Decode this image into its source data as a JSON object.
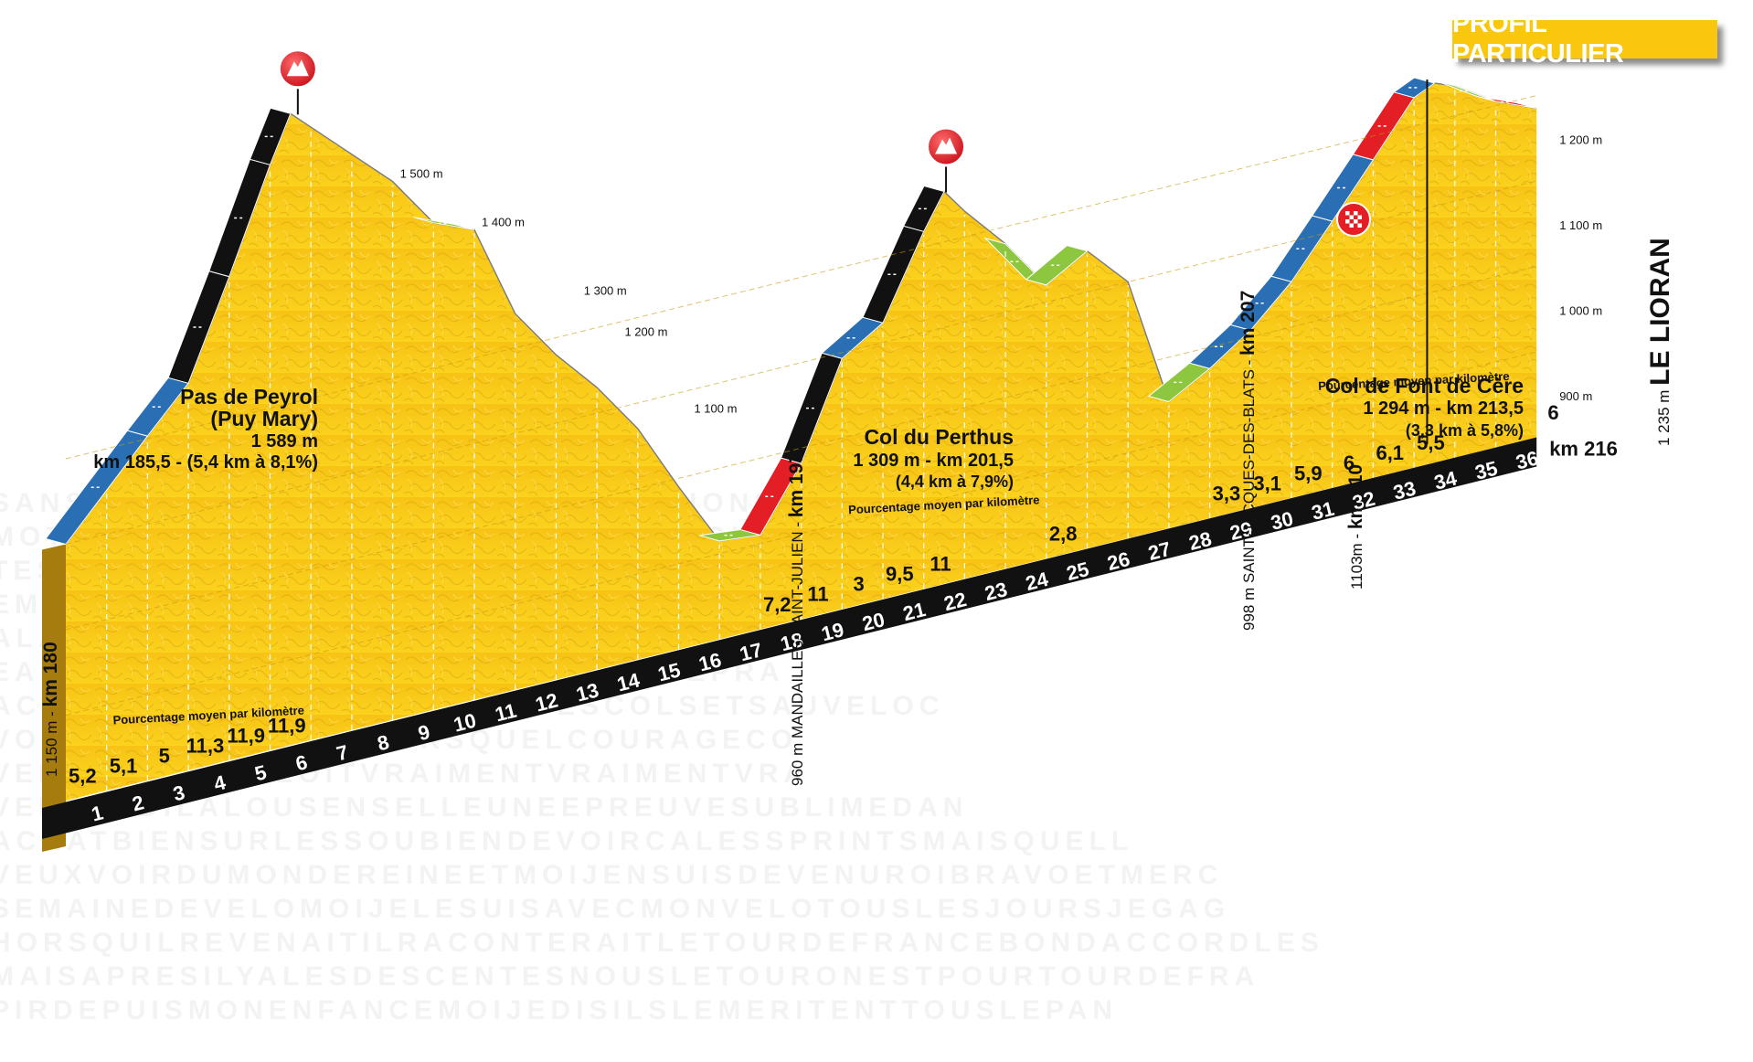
{
  "badge": {
    "label": "PROFIL PARTICULIER",
    "bg": "#F9C80E"
  },
  "background_text": [
    "SANSFRANCETOURDEFRANCEMOTIVATIONSOUVENIRS",
    "MOTIONCOURAGEMYTHEGEANTSDELAROUTE",
    "TESEXPLOITSTOUSLESJOURSMONTAGNE",
    "EMENTREVENTTOUSENSEMBLEAUTOUR",
    "ALAVIEREVIENTAUCOEURDELAFRANCE",
    "EAUPELOTONLESCOUREURSPASSIONJEPRA",
    "ACVENTSOLEILMONTEESVIRAGESCOLSETSAUVELOC",
    "VOSRECITSLESCOUREURSQUELCOURAGECO",
    "VEMOIQUELEXPLOITVRAIMENTVRAIMENTVRA",
    "VENDREDILALOUSENSELLEUNEEPREUVESUBLIMEDAN",
    "ACHATBIENSURLESSOUBIENDEVOIRCALESSPRINTSMAISQUELL",
    "VEUXVOIRDUMONDEREINEETMOIJENSUISDEVENUROIBRAVOETMERC",
    "SEMAINEDEVELOMOIJELESUISAVECMONVELOTOUSLESJOURSJEGAG",
    "HORSQUILREVENAITILRACONTERAITLETOURDEFRANCEBONDACCORDLES",
    "MAISAPRESILYALESDESCENTESNOUSLETOURONESTPOURTOURDEFRA",
    "PIRDEPUISMONENFANCEMOIJEDISILSLEMERITENTTOUSLEPAN"
  ],
  "chart_data": {
    "type": "area",
    "title": "",
    "xlabel": "",
    "ylabel": "",
    "x_unit": "km",
    "y_unit": "m",
    "race_km_start": 180,
    "race_km_end": 216,
    "x_range": [
      0,
      36
    ],
    "y_ticks": [
      "900 m",
      "1 000 m",
      "1 100 m",
      "1 200 m"
    ],
    "km_markers": [
      "1",
      "2",
      "3",
      "4",
      "5",
      "6",
      "7",
      "8",
      "9",
      "10",
      "11",
      "12",
      "13",
      "14",
      "15",
      "16",
      "17",
      "18",
      "19",
      "20",
      "21",
      "22",
      "23",
      "24",
      "25",
      "26",
      "27",
      "28",
      "29",
      "30",
      "31",
      "32",
      "33",
      "34",
      "35",
      "36"
    ],
    "end_label": "km 216",
    "profile": [
      {
        "km": 0,
        "alt": 1150
      },
      {
        "km": 1,
        "alt": 1202
      },
      {
        "km": 2,
        "alt": 1253
      },
      {
        "km": 3,
        "alt": 1303
      },
      {
        "km": 4,
        "alt": 1416
      },
      {
        "km": 5,
        "alt": 1535
      },
      {
        "km": 5.5,
        "alt": 1589
      },
      {
        "km": 8,
        "alt": 1480
      },
      {
        "km": 9,
        "alt": 1420
      },
      {
        "km": 10,
        "alt": 1400
      },
      {
        "km": 11,
        "alt": 1290
      },
      {
        "km": 12,
        "alt": 1230
      },
      {
        "km": 13,
        "alt": 1180
      },
      {
        "km": 14,
        "alt": 1120
      },
      {
        "km": 15,
        "alt": 1040
      },
      {
        "km": 16,
        "alt": 965
      },
      {
        "km": 17,
        "alt": 960
      },
      {
        "km": 18,
        "alt": 1032
      },
      {
        "km": 19,
        "alt": 1143
      },
      {
        "km": 20,
        "alt": 1173
      },
      {
        "km": 21,
        "alt": 1268
      },
      {
        "km": 21.5,
        "alt": 1309
      },
      {
        "km": 22,
        "alt": 1280
      },
      {
        "km": 23,
        "alt": 1230
      },
      {
        "km": 24,
        "alt": 1170
      },
      {
        "km": 25,
        "alt": 1198
      },
      {
        "km": 26,
        "alt": 1150
      },
      {
        "km": 27,
        "alt": 998
      },
      {
        "km": 28,
        "alt": 1025
      },
      {
        "km": 29,
        "alt": 1058
      },
      {
        "km": 30,
        "alt": 1103
      },
      {
        "km": 31,
        "alt": 1162
      },
      {
        "km": 32,
        "alt": 1222
      },
      {
        "km": 33,
        "alt": 1283
      },
      {
        "km": 33.5,
        "alt": 1294
      },
      {
        "km": 34,
        "alt": 1285
      },
      {
        "km": 35,
        "alt": 1255
      },
      {
        "km": 36,
        "alt": 1235
      }
    ],
    "grades": [
      {
        "km": 1,
        "pct": "5,2"
      },
      {
        "km": 2,
        "pct": "5,1"
      },
      {
        "km": 3,
        "pct": "5"
      },
      {
        "km": 4,
        "pct": "11,3"
      },
      {
        "km": 5,
        "pct": "11,9"
      },
      {
        "km": 6,
        "pct": "11,9"
      },
      {
        "km": 18,
        "pct": "7,2"
      },
      {
        "km": 19,
        "pct": "11"
      },
      {
        "km": 20,
        "pct": "3"
      },
      {
        "km": 21,
        "pct": "9,5"
      },
      {
        "km": 22,
        "pct": "11"
      },
      {
        "km": 25,
        "pct": "2,8"
      },
      {
        "km": 29,
        "pct": "3,3"
      },
      {
        "km": 30,
        "pct": "3,1"
      },
      {
        "km": 31,
        "pct": "5,9"
      },
      {
        "km": 32,
        "pct": "6"
      },
      {
        "km": 33,
        "pct": "6,1"
      },
      {
        "km": 34,
        "pct": "5,5"
      },
      {
        "km": 37,
        "pct": "6"
      }
    ],
    "grade_caption": "Pourcentage moyen par kilomètre",
    "segment_colors": {
      "green": "#8DC63F",
      "blue": "#2A6EB4",
      "red": "#E31E24",
      "black": "#111111"
    },
    "climbs": [
      {
        "name": "Pas de Peyrol",
        "sub": "(Puy Mary)",
        "alt": "1 589 m",
        "detail": "km 185,5 - (5,4 km à 8,1%)"
      },
      {
        "name": "Col du Perthus",
        "alt_km": "1 309 m - km 201,5",
        "detail": "(4,4 km à 7,9%)"
      },
      {
        "name": "Col de Font de Cère",
        "alt_km": "1 294 m - km 213,5",
        "detail": "(3,3 km à 5,8%)"
      }
    ],
    "places": [
      {
        "alt": "1 150 m",
        "km": "km 180"
      },
      {
        "alt": "960 m",
        "name": "MANDAILLES-SAINT-JULIEN",
        "km": "km 197"
      },
      {
        "alt": "998 m",
        "name": "SAINT-JACQUES-DES-BLATS",
        "km": "km 207"
      },
      {
        "alt": "1103m",
        "km": "km 210"
      },
      {
        "alt": "1 235 m",
        "name": "LE LIORAN"
      }
    ],
    "altitude_marks": [
      "1 500 m",
      "1 400 m",
      "1 300 m",
      "1 200 m",
      "1 100 m"
    ]
  }
}
